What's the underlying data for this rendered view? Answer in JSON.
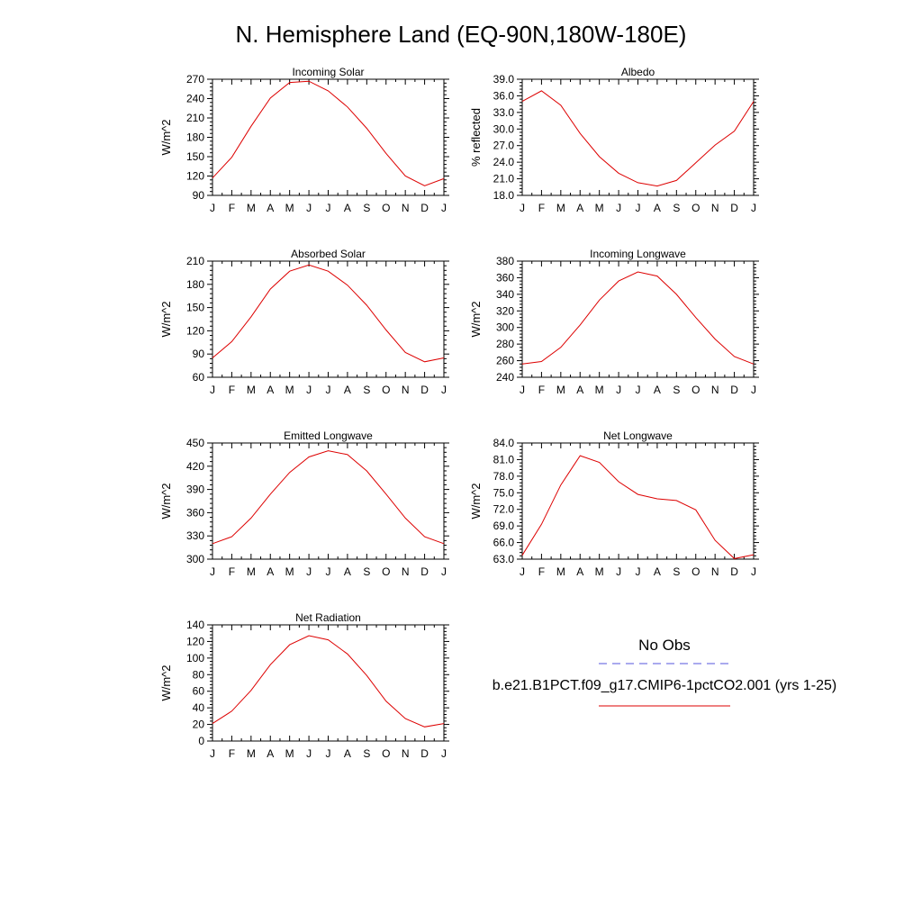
{
  "title": "N. Hemisphere Land (EQ-90N,180W-180E)",
  "legend": {
    "obs_label": "No Obs",
    "obs_color": "#5555dd",
    "model_label": "b.e21.B1PCT.f09_g17.CMIP6-1pctCO2.001 (yrs 1-25)",
    "model_color": "#dd0000"
  },
  "chart_data": [
    {
      "type": "line",
      "title": "Incoming Solar",
      "ylabel": "W/m^2",
      "categories": [
        "J",
        "F",
        "M",
        "A",
        "M",
        "J",
        "J",
        "A",
        "S",
        "O",
        "N",
        "D",
        "J"
      ],
      "ylim": [
        90,
        270
      ],
      "yticks": [
        "90",
        "120",
        "150",
        "180",
        "210",
        "240",
        "270"
      ],
      "series": [
        {
          "values": [
            117,
            149,
            197,
            241,
            265,
            267,
            252,
            227,
            194,
            155,
            120,
            105,
            116
          ]
        }
      ]
    },
    {
      "type": "line",
      "title": "Albedo",
      "ylabel": "% reflected",
      "categories": [
        "J",
        "F",
        "M",
        "A",
        "M",
        "J",
        "J",
        "A",
        "S",
        "O",
        "N",
        "D",
        "J"
      ],
      "ylim": [
        18,
        39
      ],
      "yticks": [
        "18.0",
        "21.0",
        "24.0",
        "27.0",
        "30.0",
        "33.0",
        "36.0",
        "39.0"
      ],
      "series": [
        {
          "values": [
            35.0,
            36.9,
            34.3,
            29.2,
            25.0,
            22.0,
            20.3,
            19.7,
            20.7,
            23.9,
            27.1,
            29.6,
            35.0
          ]
        }
      ]
    },
    {
      "type": "line",
      "title": "Absorbed Solar",
      "ylabel": "W/m^2",
      "categories": [
        "J",
        "F",
        "M",
        "A",
        "M",
        "J",
        "J",
        "A",
        "S",
        "O",
        "N",
        "D",
        "J"
      ],
      "ylim": [
        60,
        210
      ],
      "yticks": [
        "60",
        "90",
        "120",
        "150",
        "180",
        "210"
      ],
      "series": [
        {
          "values": [
            85,
            106,
            138,
            174,
            197,
            205,
            197,
            179,
            153,
            121,
            92,
            80,
            85
          ]
        }
      ]
    },
    {
      "type": "line",
      "title": "Incoming Longwave",
      "ylabel": "W/m^2",
      "categories": [
        "J",
        "F",
        "M",
        "A",
        "M",
        "J",
        "J",
        "A",
        "S",
        "O",
        "N",
        "D",
        "J"
      ],
      "ylim": [
        240,
        380
      ],
      "yticks": [
        "240",
        "260",
        "280",
        "300",
        "320",
        "340",
        "360",
        "380"
      ],
      "series": [
        {
          "values": [
            256,
            259,
            276,
            303,
            333,
            356,
            367,
            362,
            340,
            312,
            286,
            265,
            256
          ]
        }
      ]
    },
    {
      "type": "line",
      "title": "Emitted Longwave",
      "ylabel": "W/m^2",
      "categories": [
        "J",
        "F",
        "M",
        "A",
        "M",
        "J",
        "J",
        "A",
        "S",
        "O",
        "N",
        "D",
        "J"
      ],
      "ylim": [
        300,
        450
      ],
      "yticks": [
        "300",
        "330",
        "360",
        "390",
        "420",
        "450"
      ],
      "series": [
        {
          "values": [
            320,
            329,
            353,
            384,
            412,
            432,
            440,
            435,
            414,
            384,
            353,
            329,
            320
          ]
        }
      ]
    },
    {
      "type": "line",
      "title": "Net Longwave",
      "ylabel": "W/m^2",
      "categories": [
        "J",
        "F",
        "M",
        "A",
        "M",
        "J",
        "J",
        "A",
        "S",
        "O",
        "N",
        "D",
        "J"
      ],
      "ylim": [
        63,
        84
      ],
      "yticks": [
        "63.0",
        "66.0",
        "69.0",
        "72.0",
        "75.0",
        "78.0",
        "81.0",
        "84.0"
      ],
      "series": [
        {
          "values": [
            63.7,
            69.3,
            76.4,
            81.7,
            80.5,
            77.0,
            74.7,
            73.9,
            73.6,
            71.9,
            66.4,
            63.1,
            63.8
          ]
        }
      ]
    },
    {
      "type": "line",
      "title": "Net Radiation",
      "ylabel": "W/m^2",
      "categories": [
        "J",
        "F",
        "M",
        "A",
        "M",
        "J",
        "J",
        "A",
        "S",
        "O",
        "N",
        "D",
        "J"
      ],
      "ylim": [
        0,
        140
      ],
      "yticks": [
        "0",
        "20",
        "40",
        "60",
        "80",
        "100",
        "120",
        "140"
      ],
      "series": [
        {
          "values": [
            21,
            36,
            61,
            92,
            116,
            127,
            122,
            105,
            79,
            48,
            27,
            17,
            21
          ]
        }
      ]
    }
  ]
}
